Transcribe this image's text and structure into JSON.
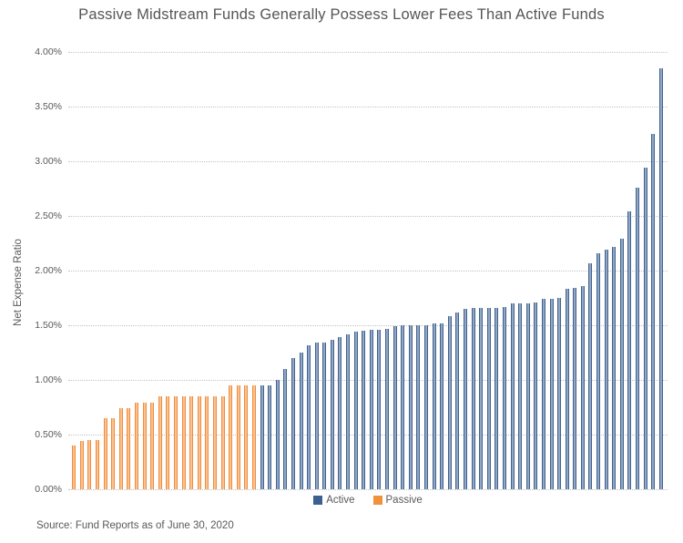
{
  "title": "Passive Midstream Funds Generally Possess Lower Fees Than Active Funds",
  "source_note": "Source: Fund Reports as of June 30, 2020",
  "colors": {
    "active_edge": "#41638f",
    "active_fill": "#93a7c4",
    "active_legend": "#3d6090",
    "passive_edge": "#ef8c3f",
    "passive_fill": "#fac290",
    "passive_legend": "#f0913c",
    "grid": "#c3c3c3",
    "axis_text": "#595959",
    "title_text": "#555555"
  },
  "chart_data": {
    "type": "bar",
    "title": "Passive Midstream Funds Generally Possess Lower Fees Than Active Funds",
    "xlabel": "",
    "ylabel": "Net Expense Ratio",
    "ylim": [
      0,
      4.0
    ],
    "ytick_labels": [
      "0.00%",
      "0.50%",
      "1.00%",
      "1.50%",
      "2.00%",
      "2.50%",
      "3.00%",
      "3.50%",
      "4.00%"
    ],
    "grid": "horizontal-dotted",
    "legend_position": "bottom-center",
    "bar_order": [
      "Passive",
      "Active"
    ],
    "values_unit": "percent",
    "series": [
      {
        "name": "Active",
        "color": "#3d6090",
        "values": [
          0.95,
          0.95,
          1.0,
          1.1,
          1.2,
          1.25,
          1.32,
          1.34,
          1.34,
          1.37,
          1.39,
          1.42,
          1.44,
          1.45,
          1.46,
          1.46,
          1.47,
          1.49,
          1.5,
          1.5,
          1.5,
          1.5,
          1.52,
          1.52,
          1.58,
          1.62,
          1.65,
          1.66,
          1.66,
          1.66,
          1.66,
          1.67,
          1.7,
          1.7,
          1.7,
          1.71,
          1.74,
          1.74,
          1.75,
          1.83,
          1.84,
          1.86,
          2.07,
          2.16,
          2.19,
          2.22,
          2.29,
          2.54,
          2.76,
          2.94,
          3.25,
          3.85
        ]
      },
      {
        "name": "Passive",
        "color": "#f0913c",
        "values": [
          0.4,
          0.44,
          0.45,
          0.45,
          0.65,
          0.65,
          0.74,
          0.74,
          0.79,
          0.79,
          0.79,
          0.85,
          0.85,
          0.85,
          0.85,
          0.85,
          0.85,
          0.85,
          0.85,
          0.85,
          0.95,
          0.95,
          0.95,
          0.95
        ]
      }
    ]
  }
}
